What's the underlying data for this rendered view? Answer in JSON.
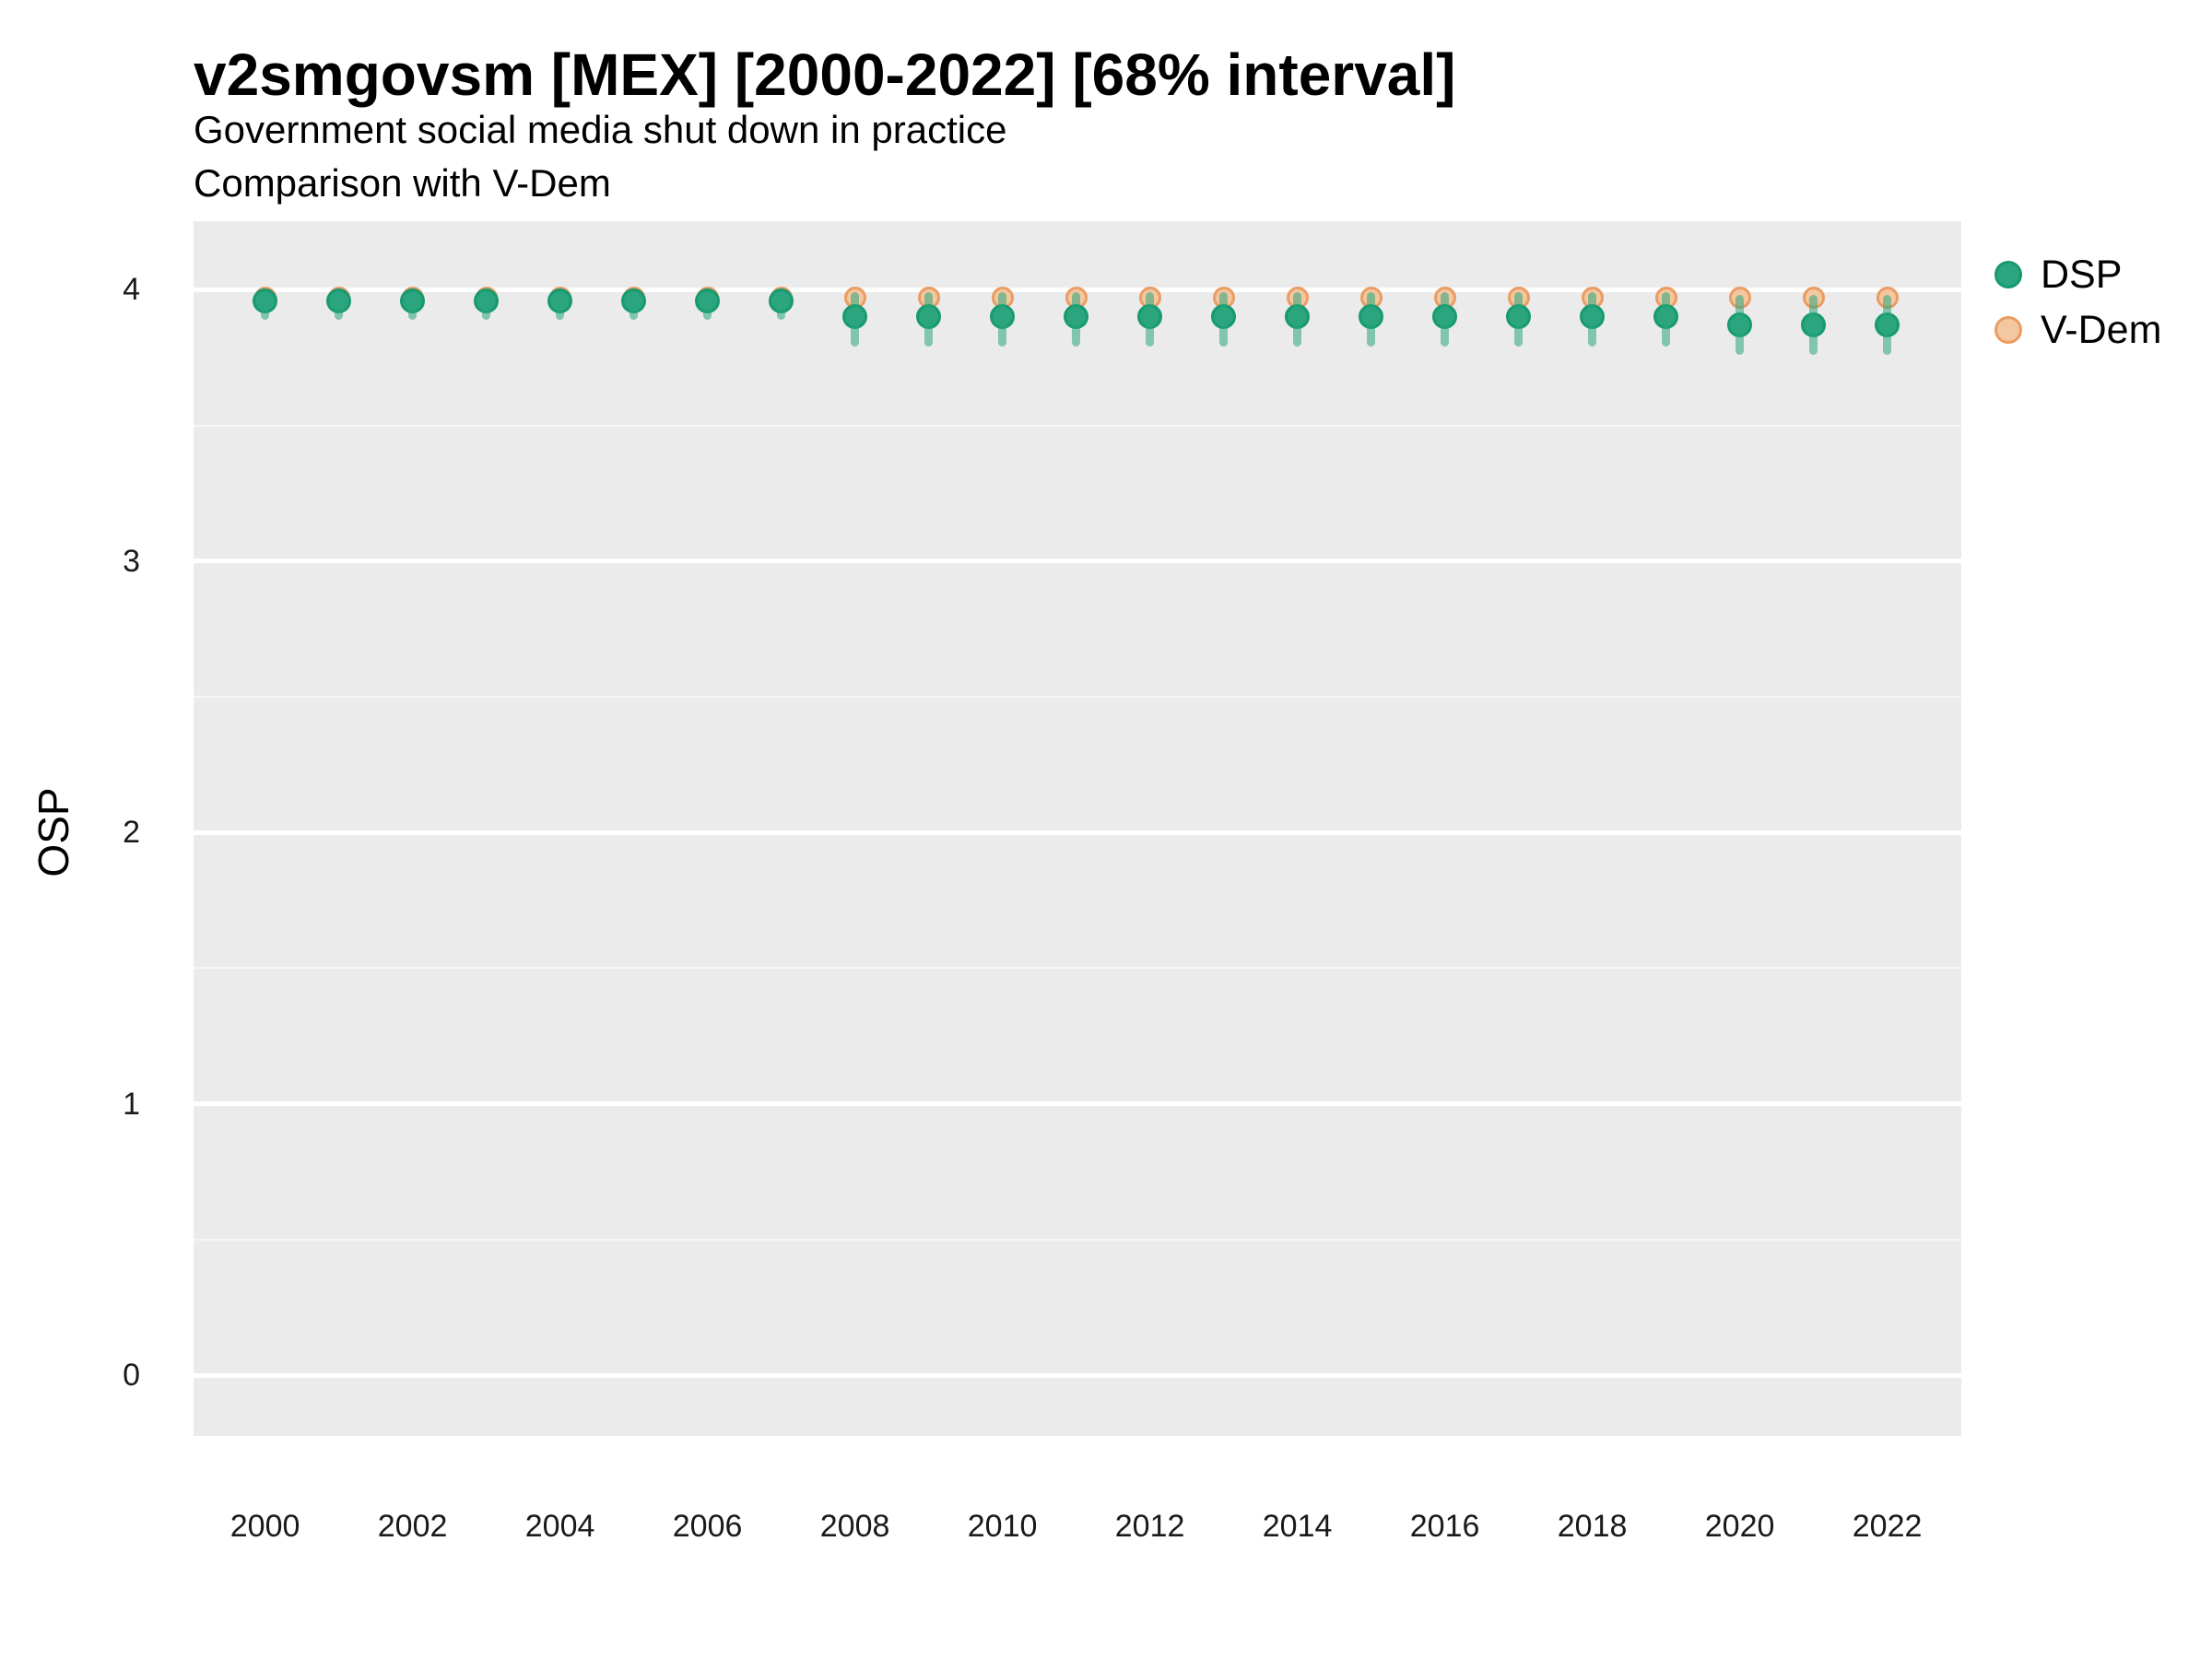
{
  "header": {
    "title": "v2smgovsm [MEX] [2000-2022] [68% interval]",
    "subtitle": "Government social media shut down in practice",
    "comparison_line": "Comparison with V-Dem"
  },
  "axes": {
    "y_label": "OSP",
    "y_ticks": [
      "0",
      "1",
      "2",
      "3",
      "4"
    ],
    "x_ticks": [
      "2000",
      "2002",
      "2004",
      "2006",
      "2008",
      "2010",
      "2012",
      "2014",
      "2016",
      "2018",
      "2020",
      "2022"
    ]
  },
  "legend": {
    "position": "right",
    "items": [
      {
        "label": "DSP",
        "fill": "#2AA57E",
        "stroke": "#189A70"
      },
      {
        "label": "V-Dem",
        "fill": "#F3C79F",
        "stroke": "#EA9C63"
      }
    ]
  },
  "colors": {
    "page_bg": "#FFFFFF",
    "panel_bg": "#EBEBEB",
    "grid_major": "#FFFFFF",
    "dsp_fill": "#2AA57E",
    "dsp_stroke": "#189A70",
    "dsp_interval": "rgba(42,165,126,0.55)",
    "vdem_fill": "#F3C79F",
    "vdem_stroke": "#EA9C63",
    "text": "#000000"
  },
  "chart_data": {
    "type": "scatter",
    "title": "v2smgovsm [MEX] [2000-2022] [68% interval]",
    "subtitle": "Government social media shut down in practice",
    "note": "Comparison with V-Dem",
    "xlabel": "",
    "ylabel": "OSP",
    "grid": "horizontal-major-and-minor",
    "legend_position": "right",
    "xlim": [
      1999.03,
      2023.005
    ],
    "ylim": [
      -0.224,
      4.2525
    ],
    "yticks": [
      0,
      1,
      2,
      3,
      4
    ],
    "yticks_minor": [
      0.5,
      1.5,
      2.5,
      3.5
    ],
    "xticks": [
      2000,
      2002,
      2004,
      2006,
      2008,
      2010,
      2012,
      2014,
      2016,
      2018,
      2020,
      2022
    ],
    "x": [
      2000,
      2001,
      2002,
      2003,
      2004,
      2005,
      2006,
      2007,
      2008,
      2009,
      2010,
      2011,
      2012,
      2013,
      2014,
      2015,
      2016,
      2017,
      2018,
      2019,
      2020,
      2021,
      2022
    ],
    "series": [
      {
        "name": "DSP",
        "values": [
          3.96,
          3.96,
          3.96,
          3.96,
          3.96,
          3.96,
          3.96,
          3.96,
          3.9,
          3.9,
          3.9,
          3.9,
          3.9,
          3.9,
          3.9,
          3.9,
          3.9,
          3.9,
          3.9,
          3.9,
          3.87,
          3.87,
          3.87
        ],
        "interval_68_low": [
          3.89,
          3.89,
          3.89,
          3.89,
          3.89,
          3.89,
          3.89,
          3.89,
          3.79,
          3.79,
          3.79,
          3.79,
          3.79,
          3.79,
          3.79,
          3.79,
          3.79,
          3.79,
          3.79,
          3.79,
          3.76,
          3.76,
          3.76
        ],
        "interval_68_high": [
          3.99,
          3.99,
          3.99,
          3.99,
          3.99,
          3.99,
          3.99,
          3.99,
          3.99,
          3.99,
          3.99,
          3.99,
          3.99,
          3.99,
          3.99,
          3.99,
          3.99,
          3.99,
          3.99,
          3.99,
          3.98,
          3.98,
          3.98
        ]
      },
      {
        "name": "V-Dem",
        "values": [
          3.97,
          3.97,
          3.97,
          3.97,
          3.97,
          3.97,
          3.97,
          3.97,
          3.97,
          3.97,
          3.97,
          3.97,
          3.97,
          3.97,
          3.97,
          3.97,
          3.97,
          3.97,
          3.97,
          3.97,
          3.97,
          3.97,
          3.97
        ]
      }
    ]
  }
}
